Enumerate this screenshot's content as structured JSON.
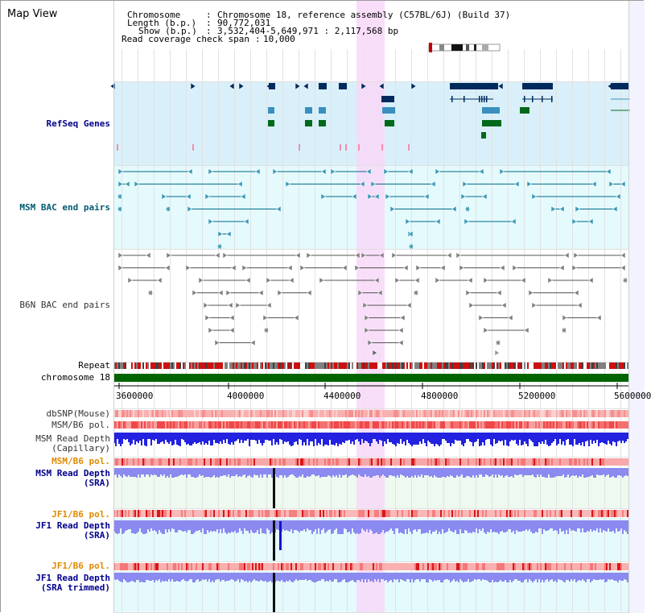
{
  "app": {
    "title": "Map View"
  },
  "header": {
    "chromosome_label": "Chromosome",
    "chromosome_value": "Chromosome 18, reference assembly (C57BL/6J) (Build 37)",
    "length_label": "Length (b.p.)",
    "length_value": "90,772,031",
    "show_label": "Show (b.p.)",
    "show_value": "3,532,404-5,649,971 : 2,117,568 bp",
    "span_label": "Read coverage check span",
    "span_value": "10,000"
  },
  "tracks": {
    "refseq": "RefSeq Genes",
    "msm_bac": "MSM BAC end pairs",
    "b6n_bac": "B6N BAC end pairs",
    "repeat": "Repeat",
    "chromosome": "chromosome 18",
    "dbsnp": "dbSNP(Mouse)",
    "msm_pol1": "MSM/B6 pol.",
    "msm_depth_cap": "MSM Read Depth\n(Capillary)",
    "msm_pol2": "MSM/B6 pol.",
    "msm_depth_sra": "MSM Read Depth\n(SRA)",
    "jf1_pol1": "JF1/B6 pol.",
    "jf1_depth_sra": "JF1 Read Depth\n(SRA)",
    "jf1_pol2": "JF1/B6 pol.",
    "jf1_depth_trim": "JF1 Read Depth\n(SRA trimmed)"
  },
  "axis": {
    "ticks": [
      "3600000",
      "4000000",
      "4400000",
      "4800000",
      "5200000",
      "5600000"
    ]
  },
  "colors": {
    "refseq_bg": "#d9f0fa",
    "bac_bg": "#e4fafc",
    "highlight": "#f8d8f8",
    "chromosome_bar": "#006400",
    "gene_dark": "#002a5c",
    "gene_mid": "#3a8fbf",
    "gene_green": "#006a1a",
    "bac_teal": "#006a8a",
    "bac_gray": "#808080",
    "depth_blue": "#2222e0",
    "depth_light": "#8a8af0",
    "pol_red": "#f04040"
  }
}
